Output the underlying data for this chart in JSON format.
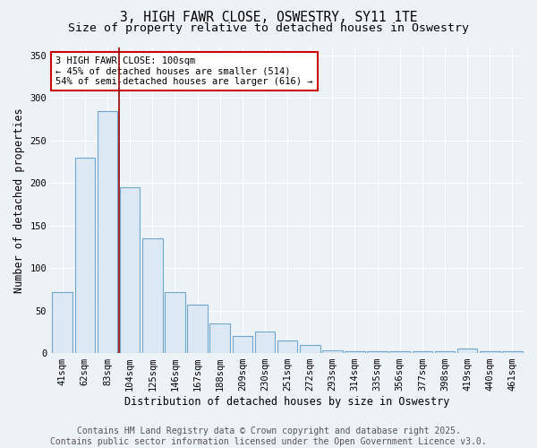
{
  "title": "3, HIGH FAWR CLOSE, OSWESTRY, SY11 1TE",
  "subtitle": "Size of property relative to detached houses in Oswestry",
  "xlabel": "Distribution of detached houses by size in Oswestry",
  "ylabel": "Number of detached properties",
  "bar_labels": [
    "41sqm",
    "62sqm",
    "83sqm",
    "104sqm",
    "125sqm",
    "146sqm",
    "167sqm",
    "188sqm",
    "209sqm",
    "230sqm",
    "251sqm",
    "272sqm",
    "293sqm",
    "314sqm",
    "335sqm",
    "356sqm",
    "377sqm",
    "398sqm",
    "419sqm",
    "440sqm",
    "461sqm"
  ],
  "bar_values": [
    72,
    230,
    285,
    195,
    135,
    72,
    57,
    35,
    20,
    25,
    15,
    10,
    3,
    2,
    2,
    2,
    2,
    2,
    5,
    2,
    2
  ],
  "bar_color": "#dce8f3",
  "bar_edgecolor": "#6fa8cc",
  "vline_x_index": 3,
  "vline_color": "#990000",
  "ylim": [
    0,
    360
  ],
  "yticks": [
    0,
    50,
    100,
    150,
    200,
    250,
    300,
    350
  ],
  "annotation_text": "3 HIGH FAWR CLOSE: 100sqm\n← 45% of detached houses are smaller (514)\n54% of semi-detached houses are larger (616) →",
  "annotation_box_color": "#ffffff",
  "annotation_border_color": "#cc0000",
  "footer_line1": "Contains HM Land Registry data © Crown copyright and database right 2025.",
  "footer_line2": "Contains public sector information licensed under the Open Government Licence v3.0.",
  "bg_color": "#edf2f7",
  "grid_color": "#ffffff",
  "title_fontsize": 10.5,
  "subtitle_fontsize": 9.5,
  "axis_label_fontsize": 8.5,
  "tick_fontsize": 7.5,
  "annot_fontsize": 7.5,
  "footer_fontsize": 7.0
}
